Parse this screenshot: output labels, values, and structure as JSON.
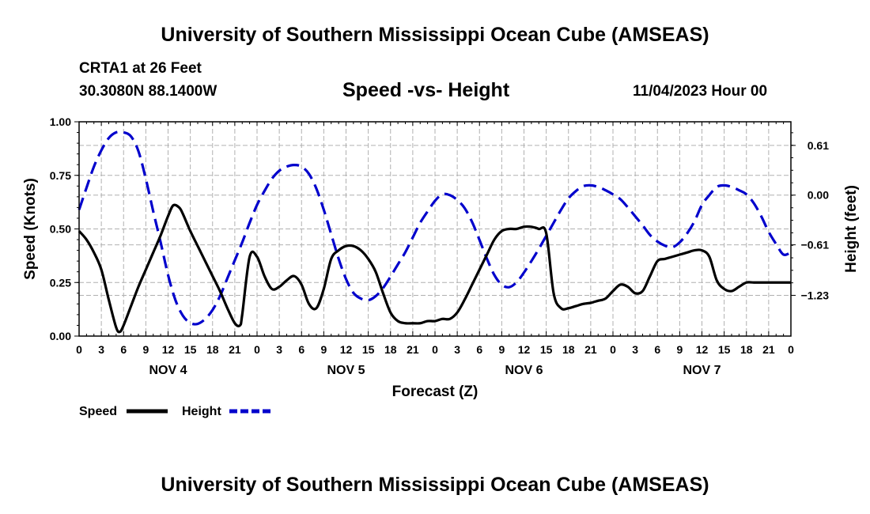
{
  "header": {
    "title": "University of Southern Mississippi Ocean Cube (AMSEAS)",
    "station": "CRTA1 at 26 Feet",
    "coords": "30.3080N  88.1400W",
    "subtitle": "Speed -vs- Height",
    "datetime": "11/04/2023 Hour 00"
  },
  "footer": {
    "title": "University of Southern Mississippi Ocean Cube (AMSEAS)"
  },
  "chart_data": {
    "type": "line",
    "title": "Speed -vs- Height",
    "xlabel": "Forecast (Z)",
    "ylabel": "Speed (Knots)",
    "y2label": "Height (feet)",
    "xlim": [
      0,
      96
    ],
    "ylim": [
      0,
      1.0
    ],
    "y2lim": [
      -1.73,
      0.9
    ],
    "x_tick_labels": [
      "0",
      "3",
      "6",
      "9",
      "12",
      "15",
      "18",
      "21",
      "0",
      "3",
      "6",
      "9",
      "12",
      "15",
      "18",
      "21",
      "0",
      "3",
      "6",
      "9",
      "12",
      "15",
      "18",
      "21",
      "0",
      "3",
      "6",
      "9",
      "12",
      "15",
      "18",
      "21",
      "0"
    ],
    "day_labels": [
      {
        "label": "NOV 4",
        "center_hour": 12
      },
      {
        "label": "NOV 5",
        "center_hour": 36
      },
      {
        "label": "NOV 6",
        "center_hour": 60
      },
      {
        "label": "NOV 7",
        "center_hour": 84
      }
    ],
    "y_ticks": [
      "0.00",
      "0.25",
      "0.50",
      "0.75",
      "1.00"
    ],
    "y_tick_values": [
      0,
      0.25,
      0.5,
      0.75,
      1.0
    ],
    "y2_ticks": [
      "0.61",
      "0.00",
      "-0.61",
      "-1.23"
    ],
    "y2_tick_values": [
      0.61,
      0.0,
      -0.61,
      -1.23
    ],
    "grid": true,
    "legend_position": "bottom-left",
    "series": [
      {
        "name": "Speed",
        "axis": "left",
        "color": "#000000",
        "style": "solid",
        "x": [
          0,
          1,
          2,
          3,
          4,
          5,
          5.5,
          6,
          7,
          8,
          9,
          10,
          11,
          12,
          12.7,
          13.5,
          14,
          15,
          16,
          17,
          18,
          19,
          20,
          21,
          21.7,
          22,
          23,
          24,
          25,
          26,
          27,
          28,
          29,
          30,
          31,
          32,
          33,
          34,
          35,
          36,
          37,
          38,
          39,
          40,
          41,
          42,
          43,
          44,
          45,
          46,
          47,
          48,
          49,
          50,
          51,
          52,
          53,
          54,
          55,
          56,
          57,
          58,
          59,
          60,
          61,
          62,
          63,
          64,
          65,
          66,
          67,
          68,
          69,
          69.5,
          70,
          71,
          72,
          73,
          74,
          75,
          76,
          77,
          78,
          79,
          80,
          81,
          82,
          83,
          84,
          85,
          86,
          87,
          88,
          89,
          90,
          91,
          92,
          93,
          94,
          95,
          96
        ],
        "values": [
          0.49,
          0.45,
          0.39,
          0.31,
          0.17,
          0.04,
          0.02,
          0.05,
          0.14,
          0.23,
          0.31,
          0.39,
          0.47,
          0.56,
          0.61,
          0.6,
          0.57,
          0.49,
          0.42,
          0.35,
          0.28,
          0.21,
          0.13,
          0.06,
          0.05,
          0.1,
          0.37,
          0.37,
          0.28,
          0.22,
          0.23,
          0.26,
          0.28,
          0.24,
          0.15,
          0.13,
          0.22,
          0.36,
          0.4,
          0.42,
          0.42,
          0.4,
          0.36,
          0.3,
          0.2,
          0.11,
          0.07,
          0.06,
          0.06,
          0.06,
          0.07,
          0.07,
          0.08,
          0.08,
          0.11,
          0.17,
          0.24,
          0.31,
          0.38,
          0.45,
          0.49,
          0.5,
          0.5,
          0.51,
          0.51,
          0.5,
          0.48,
          0.2,
          0.13,
          0.13,
          0.14,
          0.15,
          0.155,
          0.16,
          0.165,
          0.175,
          0.21,
          0.24,
          0.23,
          0.2,
          0.21,
          0.28,
          0.35,
          0.36,
          0.37,
          0.38,
          0.39,
          0.4,
          0.4,
          0.37,
          0.26,
          0.22,
          0.21,
          0.23,
          0.25,
          0.25,
          0.25,
          0.25,
          0.25,
          0.25,
          0.25
        ]
      },
      {
        "name": "Height",
        "axis": "right",
        "color": "#0000cc",
        "style": "dashed",
        "x": [
          0,
          1,
          2,
          3,
          4,
          5,
          6,
          7,
          8,
          9,
          10,
          11,
          12,
          13,
          14,
          15,
          16,
          17,
          18,
          19,
          20,
          21,
          22,
          23,
          24,
          25,
          26,
          27,
          28,
          29,
          30,
          31,
          32,
          33,
          34,
          35,
          36,
          37,
          38,
          39,
          40,
          41,
          42,
          43,
          44,
          45,
          46,
          47,
          48,
          49,
          50,
          51,
          52,
          53,
          54,
          55,
          56,
          57,
          58,
          59,
          60,
          61,
          62,
          63,
          64,
          65,
          66,
          67,
          68,
          69,
          70,
          71,
          72,
          73,
          74,
          75,
          76,
          77,
          78,
          79,
          80,
          81,
          82,
          83,
          84,
          85,
          86,
          87,
          88,
          89,
          90,
          91,
          92,
          93,
          94,
          95,
          96
        ],
        "values": [
          -0.18,
          0.09,
          0.35,
          0.55,
          0.7,
          0.77,
          0.77,
          0.72,
          0.54,
          0.2,
          -0.2,
          -0.58,
          -0.98,
          -1.29,
          -1.48,
          -1.57,
          -1.58,
          -1.52,
          -1.41,
          -1.24,
          -1.02,
          -0.8,
          -0.58,
          -0.34,
          -0.12,
          0.05,
          0.2,
          0.3,
          0.35,
          0.37,
          0.35,
          0.26,
          0.08,
          -0.18,
          -0.48,
          -0.78,
          -1.03,
          -1.2,
          -1.27,
          -1.29,
          -1.24,
          -1.14,
          -1.0,
          -0.85,
          -0.7,
          -0.52,
          -0.34,
          -0.2,
          -0.07,
          0.01,
          0.0,
          -0.06,
          -0.16,
          -0.33,
          -0.55,
          -0.78,
          -0.98,
          -1.1,
          -1.13,
          -1.07,
          -0.95,
          -0.81,
          -0.66,
          -0.5,
          -0.34,
          -0.18,
          -0.04,
          0.05,
          0.11,
          0.12,
          0.1,
          0.06,
          0.01,
          -0.05,
          -0.15,
          -0.26,
          -0.37,
          -0.49,
          -0.57,
          -0.62,
          -0.64,
          -0.58,
          -0.47,
          -0.32,
          -0.12,
          0.0,
          0.1,
          0.12,
          0.1,
          0.06,
          0.01,
          -0.1,
          -0.26,
          -0.45,
          -0.6,
          -0.73,
          -0.7
        ]
      }
    ],
    "legend": [
      {
        "label": "Speed",
        "color": "#000000",
        "style": "solid"
      },
      {
        "label": "Height",
        "color": "#0000cc",
        "style": "dashed"
      }
    ]
  }
}
